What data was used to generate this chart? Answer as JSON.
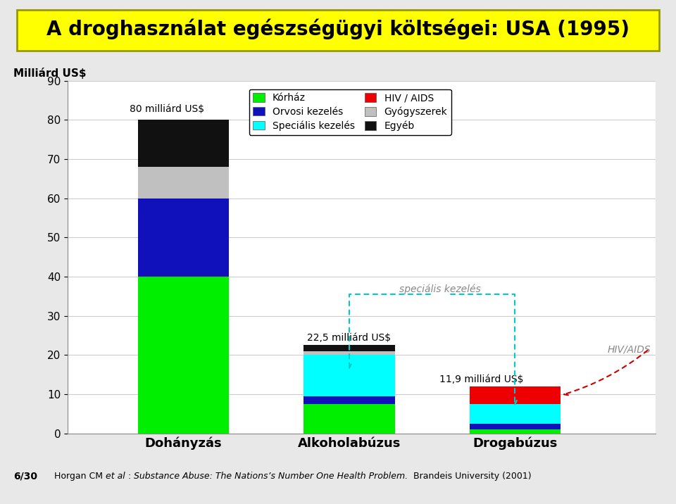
{
  "title_bold": "A droghasználat egészségügyi költségei: USA",
  "title_normal": " (1995)",
  "ylabel_topleft": "Milliárd US$",
  "categories": [
    "Dohányzás",
    "Alkoholabúzus",
    "Drogabúzus"
  ],
  "segments": {
    "Kórház": [
      40.0,
      7.5,
      1.0
    ],
    "Orvosi kezelés": [
      20.0,
      2.0,
      1.5
    ],
    "Speciális kezelés": [
      0.0,
      10.5,
      5.0
    ],
    "HIV / AIDS": [
      0.0,
      0.0,
      4.4
    ],
    "Gyógyszerek": [
      8.0,
      1.0,
      0.0
    ],
    "Egyéb": [
      12.0,
      1.5,
      0.0
    ]
  },
  "colors": {
    "Kórház": "#00ee00",
    "Orvosi kezelés": "#1111bb",
    "Speciális kezelés": "#00ffff",
    "HIV / AIDS": "#ee0000",
    "Gyógyszerek": "#c0c0c0",
    "Egyéb": "#111111"
  },
  "legend_order": [
    "Kórház",
    "Orvosi kezelés",
    "Speciális kezelés",
    "HIV / AIDS",
    "Gyógyszerek",
    "Egyéb"
  ],
  "ylim": [
    0,
    90
  ],
  "yticks": [
    0,
    10,
    20,
    30,
    40,
    50,
    60,
    70,
    80,
    90
  ],
  "bar_width": 0.55,
  "bg_color": "#e8e8e8",
  "plot_bg": "#ffffff",
  "title_bg": "#ffff00",
  "annotation_80": "80 milliárd US$",
  "annotation_225": "22,5 milliárd US$",
  "annotation_119": "11,9 milliárd US$",
  "ann_spec": "speciális kezelés",
  "ann_hiv": "HIV/AIDS",
  "footer_normal1": "Horgan CM ",
  "footer_italic": "et al",
  "footer_normal2": " :  ",
  "footer_italic2": "Substance Abuse: The Nations’s Number One Health Problem.",
  "footer_normal3": "  Brandeis University (2001)",
  "slide_num": "6/30"
}
